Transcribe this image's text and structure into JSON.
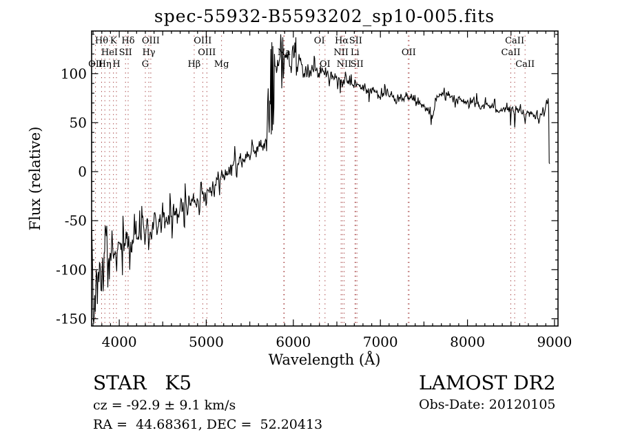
{
  "title": "spec-55932-B5593202_sp10-005.fits",
  "footer": {
    "class_label": "STAR   K5",
    "survey": "LAMOST DR2",
    "cz": "cz = -92.9 ± 9.1 km/s",
    "obs_date": "Obs-Date: 20120105",
    "radec": "RA =  44.68361, DEC =  52.20413"
  },
  "chart_data": {
    "type": "line",
    "title": "spec-55932-B5593202_sp10-005.fits",
    "xlabel": "Wavelength (Å)",
    "ylabel": "Flux (relative)",
    "xlim": [
      3683,
      9040
    ],
    "ylim": [
      -157.4,
      143.4
    ],
    "x_ticks": [
      4000,
      5000,
      6000,
      7000,
      8000,
      9000
    ],
    "y_ticks": [
      100,
      50,
      0,
      -50,
      -100,
      -150
    ],
    "x_minor_step": 100,
    "y_minor_step": 10,
    "grid": "vertical dotted lines at spectral-line wavelengths",
    "legend": "none",
    "line_color": "#000000",
    "dotted_line_color": "#a03434",
    "spectral_lines": [
      {
        "label": "Hθ",
        "wavelength": 3798,
        "row": 1
      },
      {
        "label": "K",
        "wavelength": 3934,
        "row": 1
      },
      {
        "label": "Hδ",
        "wavelength": 4102,
        "row": 1
      },
      {
        "label": "OIII",
        "wavelength": 4363,
        "row": 1
      },
      {
        "label": "OIII",
        "wavelength": 4959,
        "row": 1
      },
      {
        "label": "OI",
        "wavelength": 6300,
        "row": 1
      },
      {
        "label": "Hα",
        "wavelength": 6555,
        "row": 1
      },
      {
        "label": "SII",
        "wavelength": 6716,
        "row": 1
      },
      {
        "label": "CaII",
        "wavelength": 8542,
        "row": 1
      },
      {
        "label": "HeI",
        "wavelength": 3889,
        "row": 2
      },
      {
        "label": "SII",
        "wavelength": 4072,
        "row": 2
      },
      {
        "label": "Hγ",
        "wavelength": 4340,
        "row": 2
      },
      {
        "label": "OIII",
        "wavelength": 5007,
        "row": 2
      },
      {
        "label": "Na",
        "wavelength": 5893,
        "row": 2
      },
      {
        "label": "NII",
        "wavelength": 6548,
        "row": 2
      },
      {
        "label": "Li",
        "wavelength": 6708,
        "row": 2
      },
      {
        "label": "OII",
        "wavelength": 7325,
        "row": 2
      },
      {
        "label": "CaII",
        "wavelength": 8498,
        "row": 2
      },
      {
        "label": "OII",
        "wavelength": 3727,
        "row": 3
      },
      {
        "label": "Hη",
        "wavelength": 3835,
        "row": 3
      },
      {
        "label": "H",
        "wavelength": 3968,
        "row": 3
      },
      {
        "label": "G",
        "wavelength": 4300,
        "row": 3
      },
      {
        "label": "Hβ",
        "wavelength": 4861,
        "row": 3
      },
      {
        "label": "Mg",
        "wavelength": 5175,
        "row": 3
      },
      {
        "label": "OI",
        "wavelength": 6364,
        "row": 3
      },
      {
        "label": "NII",
        "wavelength": 6583,
        "row": 3
      },
      {
        "label": "SII",
        "wavelength": 6731,
        "row": 3
      },
      {
        "label": "CaII",
        "wavelength": 8662,
        "row": 3
      }
    ],
    "dotted_lines": [
      3727,
      3798,
      3835,
      3889,
      3934,
      3968,
      4072,
      4102,
      4300,
      4340,
      4363,
      4861,
      4959,
      5007,
      5175,
      5890,
      5896,
      6300,
      6364,
      6548,
      6563,
      6583,
      6708,
      6716,
      6731,
      7320,
      7330,
      8498,
      8542,
      8662
    ],
    "continuum": [
      [
        3683,
        -95
      ],
      [
        3695,
        -105
      ],
      [
        3705,
        -100
      ],
      [
        3720,
        -97
      ],
      [
        3740,
        -95
      ],
      [
        3770,
        -94
      ],
      [
        3800,
        -92
      ],
      [
        3850,
        -88
      ],
      [
        3900,
        -85
      ],
      [
        3950,
        -83
      ],
      [
        4000,
        -80
      ],
      [
        4050,
        -77
      ],
      [
        4100,
        -74
      ],
      [
        4150,
        -71
      ],
      [
        4200,
        -68
      ],
      [
        4250,
        -64
      ],
      [
        4300,
        -61
      ],
      [
        4350,
        -59
      ],
      [
        4400,
        -56
      ],
      [
        4450,
        -53
      ],
      [
        4500,
        -51
      ],
      [
        4550,
        -49
      ],
      [
        4600,
        -47
      ],
      [
        4650,
        -44
      ],
      [
        4700,
        -41
      ],
      [
        4750,
        -38
      ],
      [
        4800,
        -34
      ],
      [
        4850,
        -30
      ],
      [
        4900,
        -27
      ],
      [
        4950,
        -23
      ],
      [
        5000,
        -20
      ],
      [
        5050,
        -16
      ],
      [
        5100,
        -12
      ],
      [
        5150,
        -8
      ],
      [
        5200,
        -4
      ],
      [
        5250,
        0
      ],
      [
        5300,
        4
      ],
      [
        5350,
        8
      ],
      [
        5400,
        11
      ],
      [
        5450,
        15
      ],
      [
        5500,
        18
      ],
      [
        5550,
        21
      ],
      [
        5600,
        25
      ],
      [
        5650,
        28
      ],
      [
        5690,
        30
      ],
      [
        5710,
        45
      ],
      [
        5730,
        65
      ],
      [
        5750,
        85
      ],
      [
        5770,
        100
      ],
      [
        5790,
        112
      ],
      [
        5820,
        116
      ],
      [
        5860,
        118
      ],
      [
        5900,
        119
      ],
      [
        5950,
        121
      ],
      [
        6000,
        119
      ],
      [
        6050,
        117
      ],
      [
        6100,
        110
      ],
      [
        6150,
        107
      ],
      [
        6200,
        105
      ],
      [
        6250,
        103
      ],
      [
        6300,
        102
      ],
      [
        6350,
        100
      ],
      [
        6400,
        99
      ],
      [
        6450,
        97
      ],
      [
        6500,
        96
      ],
      [
        6550,
        94
      ],
      [
        6600,
        92
      ],
      [
        6650,
        90
      ],
      [
        6700,
        89
      ],
      [
        6750,
        87
      ],
      [
        6800,
        86
      ],
      [
        6850,
        84
      ],
      [
        6900,
        83
      ],
      [
        6950,
        81
      ],
      [
        7000,
        80
      ],
      [
        7050,
        78
      ],
      [
        7100,
        77
      ],
      [
        7150,
        76
      ],
      [
        7200,
        75
      ],
      [
        7250,
        75
      ],
      [
        7300,
        74
      ],
      [
        7350,
        72
      ],
      [
        7400,
        71
      ],
      [
        7450,
        68
      ],
      [
        7500,
        66
      ],
      [
        7550,
        60
      ],
      [
        7580,
        57
      ],
      [
        7610,
        62
      ],
      [
        7650,
        75
      ],
      [
        7700,
        79
      ],
      [
        7750,
        80
      ],
      [
        7800,
        76
      ],
      [
        7850,
        74
      ],
      [
        7900,
        73
      ],
      [
        7950,
        71
      ],
      [
        8000,
        70
      ],
      [
        8050,
        69
      ],
      [
        8100,
        69
      ],
      [
        8150,
        68
      ],
      [
        8200,
        68
      ],
      [
        8250,
        67
      ],
      [
        8300,
        66
      ],
      [
        8350,
        65
      ],
      [
        8400,
        64
      ],
      [
        8450,
        63
      ],
      [
        8500,
        62
      ],
      [
        8550,
        61
      ],
      [
        8600,
        62
      ],
      [
        8650,
        61
      ],
      [
        8700,
        61
      ],
      [
        8750,
        59
      ],
      [
        8800,
        57
      ],
      [
        8820,
        53
      ],
      [
        8840,
        56
      ],
      [
        8860,
        61
      ],
      [
        8880,
        66
      ],
      [
        8900,
        69
      ],
      [
        8915,
        71
      ],
      [
        8928,
        66
      ],
      [
        8933,
        60
      ],
      [
        8936,
        40
      ],
      [
        8939,
        6
      ],
      [
        8948,
        3
      ]
    ],
    "noise_segments": [
      [
        3683,
        3715,
        52
      ],
      [
        3715,
        3770,
        26
      ],
      [
        3770,
        3900,
        16
      ],
      [
        3900,
        4100,
        12
      ],
      [
        4100,
        4700,
        10
      ],
      [
        4700,
        5300,
        7.5
      ],
      [
        5300,
        5690,
        6.5
      ],
      [
        5690,
        5800,
        30
      ],
      [
        5800,
        6100,
        8
      ],
      [
        6100,
        6600,
        5.5
      ],
      [
        6600,
        7200,
        4.5
      ],
      [
        7200,
        8200,
        4
      ],
      [
        8200,
        8935,
        4
      ],
      [
        8935,
        8950,
        2
      ]
    ],
    "spikes": [
      [
        3702,
        -150
      ],
      [
        3709,
        -155
      ],
      [
        3716,
        -148
      ],
      [
        3727,
        -143
      ],
      [
        3748,
        -135
      ],
      [
        3815,
        -122
      ],
      [
        3840,
        -55
      ],
      [
        3868,
        -118
      ],
      [
        3920,
        -60
      ],
      [
        4046,
        -45
      ],
      [
        4120,
        -100
      ],
      [
        4260,
        -35
      ],
      [
        4340,
        -80
      ],
      [
        4585,
        -22
      ],
      [
        4610,
        -68
      ],
      [
        4755,
        -12
      ],
      [
        5330,
        26
      ],
      [
        5740,
        125
      ],
      [
        5747,
        38
      ],
      [
        5755,
        132
      ],
      [
        5761,
        42
      ],
      [
        5766,
        128
      ],
      [
        5774,
        48
      ],
      [
        5781,
        120
      ],
      [
        5858,
        140
      ],
      [
        5868,
        85
      ],
      [
        5877,
        137
      ],
      [
        5886,
        95
      ],
      [
        6028,
        137
      ],
      [
        6038,
        98
      ],
      [
        6240,
        118
      ],
      [
        6540,
        80
      ],
      [
        6565,
        86
      ],
      [
        6868,
        71
      ],
      [
        7594,
        54
      ],
      [
        7600,
        57
      ],
      [
        8105,
        80
      ],
      [
        8498,
        47
      ],
      [
        8542,
        45
      ],
      [
        8662,
        49
      ],
      [
        8822,
        49
      ]
    ],
    "sample_step": 6,
    "noise_seed": 1234567
  }
}
